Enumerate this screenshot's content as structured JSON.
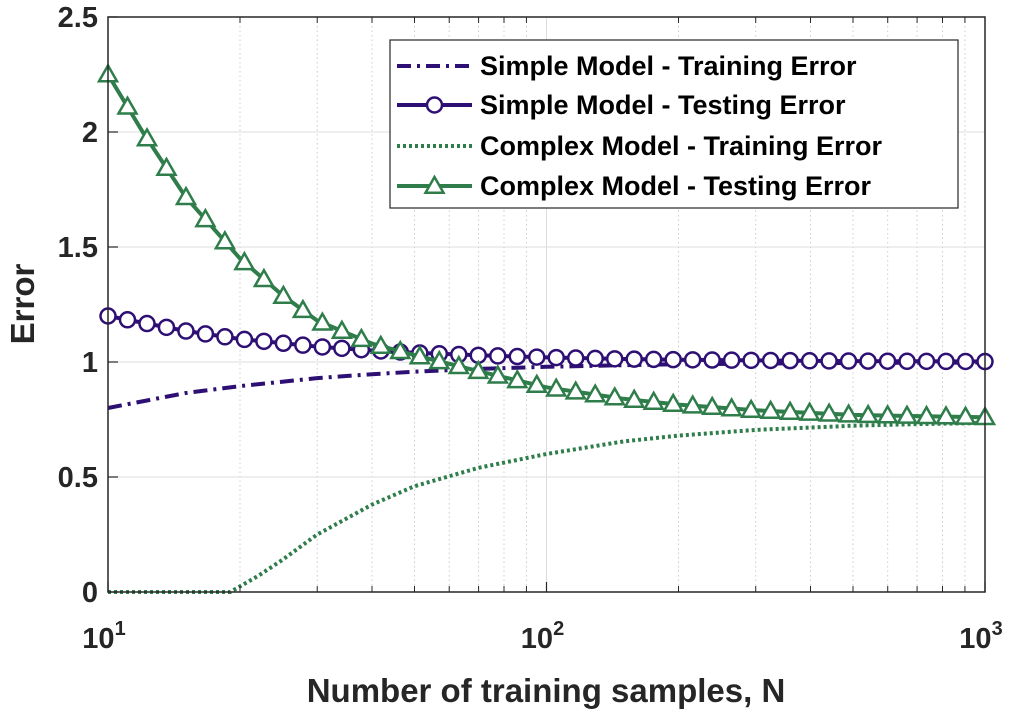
{
  "chart_data": {
    "type": "line",
    "xscale": "log",
    "xlim": [
      10,
      1000
    ],
    "ylim": [
      0,
      2.5
    ],
    "xlabel": "Number of training samples, N",
    "ylabel": "Error",
    "x_ticks": [
      {
        "value": 10,
        "base": "10",
        "exp": "1"
      },
      {
        "value": 100,
        "base": "10",
        "exp": "2"
      },
      {
        "value": 1000,
        "base": "10",
        "exp": "3"
      }
    ],
    "y_ticks": [
      {
        "value": 0,
        "label": "0"
      },
      {
        "value": 0.5,
        "label": "0.5"
      },
      {
        "value": 1,
        "label": "1"
      },
      {
        "value": 1.5,
        "label": "1.5"
      },
      {
        "value": 2,
        "label": "2"
      },
      {
        "value": 2.5,
        "label": "2.5"
      }
    ],
    "grid": true,
    "minor_grid_x": true,
    "legend_position": "top-right",
    "series": [
      {
        "name": "Simple Model - Training Error",
        "color": "#2e0f73",
        "line_style": "dashdot",
        "marker": "none",
        "x": [
          10,
          15,
          20,
          30,
          40,
          50,
          70,
          100,
          150,
          200,
          300,
          500,
          700,
          1000
        ],
        "y": [
          0.8,
          0.865,
          0.895,
          0.93,
          0.947,
          0.958,
          0.97,
          0.979,
          0.986,
          0.99,
          0.993,
          0.996,
          0.997,
          0.998
        ]
      },
      {
        "name": "Simple Model - Testing Error",
        "color": "#2e0f73",
        "line_style": "solid",
        "marker": "circle",
        "x": [
          10,
          15,
          20,
          30,
          40,
          50,
          70,
          100,
          150,
          200,
          300,
          500,
          700,
          1000
        ],
        "y": [
          1.2,
          1.135,
          1.1,
          1.067,
          1.05,
          1.04,
          1.029,
          1.02,
          1.013,
          1.01,
          1.007,
          1.004,
          1.003,
          1.002
        ]
      },
      {
        "name": "Complex Model - Training Error",
        "color": "#2e7d4a",
        "line_style": "dotted",
        "marker": "none",
        "x": [
          10,
          19,
          22,
          25,
          30,
          40,
          50,
          70,
          100,
          150,
          200,
          300,
          500,
          700,
          1000
        ],
        "y": [
          0,
          0,
          0.07,
          0.14,
          0.25,
          0.38,
          0.46,
          0.54,
          0.6,
          0.655,
          0.68,
          0.705,
          0.723,
          0.73,
          0.735
        ]
      },
      {
        "name": "Complex Model - Testing Error",
        "color": "#2e7d4a",
        "line_style": "solid",
        "marker": "triangle",
        "x": [
          10,
          12,
          15,
          20,
          25,
          30,
          40,
          50,
          70,
          100,
          150,
          200,
          300,
          500,
          700,
          1000
        ],
        "y": [
          2.25,
          2.0,
          1.72,
          1.45,
          1.29,
          1.18,
          1.08,
          1.03,
          0.96,
          0.89,
          0.84,
          0.815,
          0.79,
          0.77,
          0.765,
          0.76
        ]
      }
    ]
  }
}
